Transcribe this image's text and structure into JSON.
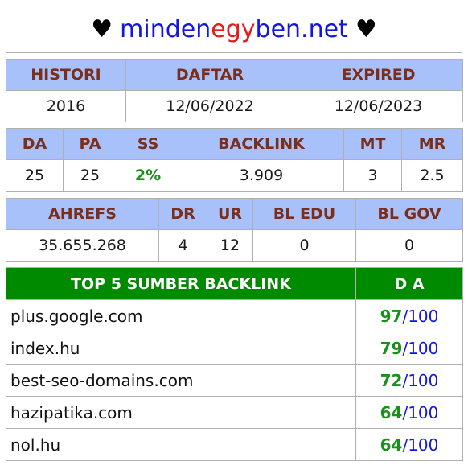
{
  "header": {
    "heart": "♥",
    "domain_parts": [
      {
        "text": "minden",
        "color": "blue"
      },
      {
        "text": "egy",
        "color": "red"
      },
      {
        "text": "ben.net",
        "color": "blue"
      }
    ]
  },
  "info": {
    "headers": [
      "HISTORI",
      "DAFTAR",
      "EXPIRED"
    ],
    "values": [
      "2016",
      "12/06/2022",
      "12/06/2023"
    ]
  },
  "metrics": {
    "headers": [
      "DA",
      "PA",
      "SS",
      "BACKLINK",
      "MT",
      "MR"
    ],
    "values": [
      "25",
      "25",
      "2%",
      "3.909",
      "3",
      "2.5"
    ]
  },
  "ahrefs": {
    "headers": [
      "AHREFS",
      "DR",
      "UR",
      "BL EDU",
      "BL GOV"
    ],
    "values": [
      "35.655.268",
      "4",
      "12",
      "0",
      "0"
    ]
  },
  "backlinks": {
    "header_source": "TOP 5 SUMBER BACKLINK",
    "header_da": "D A",
    "rows": [
      {
        "domain": "plus.google.com",
        "da": "97",
        "max": "/100"
      },
      {
        "domain": "index.hu",
        "da": "79",
        "max": "/100"
      },
      {
        "domain": "best-seo-domains.com",
        "da": "72",
        "max": "/100"
      },
      {
        "domain": "hazipatika.com",
        "da": "64",
        "max": "/100"
      },
      {
        "domain": "nol.hu",
        "da": "64",
        "max": "/100"
      }
    ]
  },
  "colors": {
    "header_bg": "#a9c1fb",
    "header_text": "#7a2f1d",
    "green_header_bg": "#008a00",
    "green_value": "#1a8f1a",
    "blue_value": "#1515e0",
    "red_accent": "#e21c1c"
  }
}
